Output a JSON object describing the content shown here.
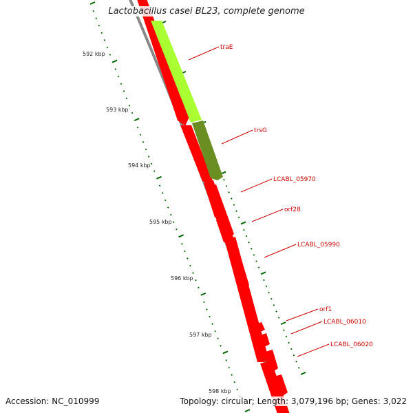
{
  "title": "Lactobacillus casei BL23, complete genome",
  "accession": "Accession: NC_010999",
  "summary": "Topology: circular; Length: 3,079,196 bp; Genes: 3,022",
  "colors": {
    "cds": "#ff0000",
    "cds_highlight": "#aaff33",
    "cds_dark": "#6b8e23",
    "backbone": "#888888",
    "tick": "#006600",
    "label": "#cc0000"
  },
  "tick_labels": [
    "592 kbp",
    "593 kbp",
    "594 kbp",
    "595 kbp",
    "596 kbp",
    "597 kbp",
    "598 kbp"
  ],
  "genes": [
    {
      "label": "traE",
      "color_key": "cds_highlight"
    },
    {
      "label": "trsG",
      "color_key": "cds_dark"
    },
    {
      "label": "LCABL_05970",
      "color_key": "cds"
    },
    {
      "label": "orf28",
      "color_key": "cds"
    },
    {
      "label": "LCABL_05990",
      "color_key": "cds"
    },
    {
      "label": "orf1",
      "color_key": "cds"
    },
    {
      "label": "LCABL_06010",
      "color_key": "cds"
    },
    {
      "label": "LCABL_06020",
      "color_key": "cds"
    }
  ]
}
